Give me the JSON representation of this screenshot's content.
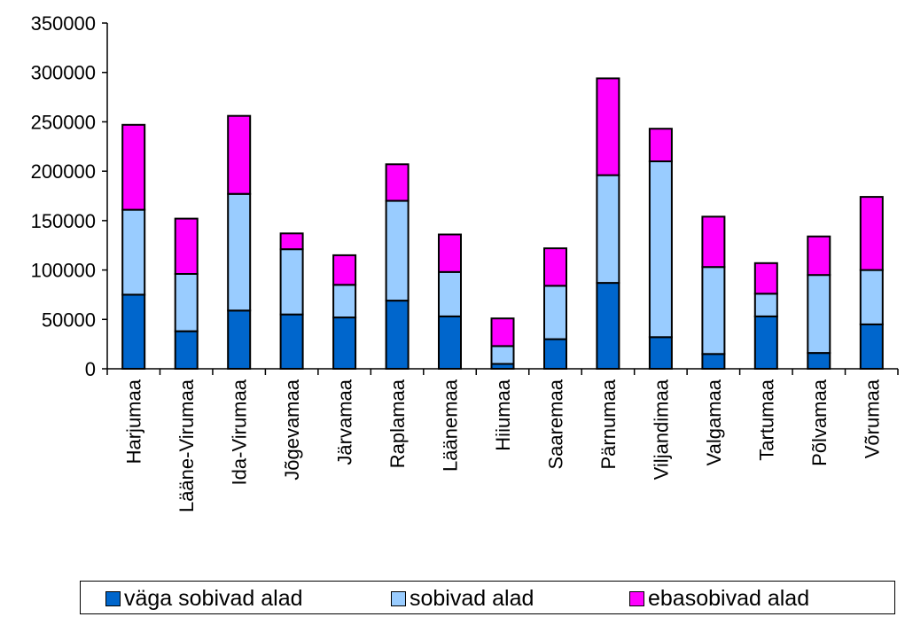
{
  "chart_data": {
    "type": "bar",
    "stacked": true,
    "title": "",
    "xlabel": "",
    "ylabel": "",
    "ylim": [
      0,
      350000
    ],
    "yticks": [
      0,
      50000,
      100000,
      150000,
      200000,
      250000,
      300000,
      350000
    ],
    "grid": false,
    "legend_position": "bottom",
    "categories": [
      "Harjumaa",
      "Lääne-Virumaa",
      "Ida-Virumaa",
      "Jõgevamaa",
      "Järvamaa",
      "Raplamaa",
      "Läänemaa",
      "Hiiumaa",
      "Saaremaa",
      "Pärnumaa",
      "Viljandimaa",
      "Valgamaa",
      "Tartumaa",
      "Põlvamaa",
      "Võrumaa"
    ],
    "series": [
      {
        "name": "väga sobivad alad",
        "color": "#0066CC",
        "values": [
          75000,
          38000,
          59000,
          55000,
          52000,
          69000,
          53000,
          5000,
          30000,
          87000,
          32000,
          15000,
          53000,
          16000,
          45000
        ]
      },
      {
        "name": "sobivad alad",
        "color": "#99CCFF",
        "values": [
          86000,
          58000,
          118000,
          66000,
          33000,
          101000,
          45000,
          18000,
          54000,
          109000,
          178000,
          88000,
          23000,
          79000,
          55000
        ]
      },
      {
        "name": "ebasobivad alad",
        "color": "#FF00FF",
        "values": [
          86000,
          56000,
          79000,
          16000,
          30000,
          37000,
          38000,
          28000,
          38000,
          98000,
          33000,
          51000,
          31000,
          39000,
          74000
        ]
      }
    ]
  }
}
